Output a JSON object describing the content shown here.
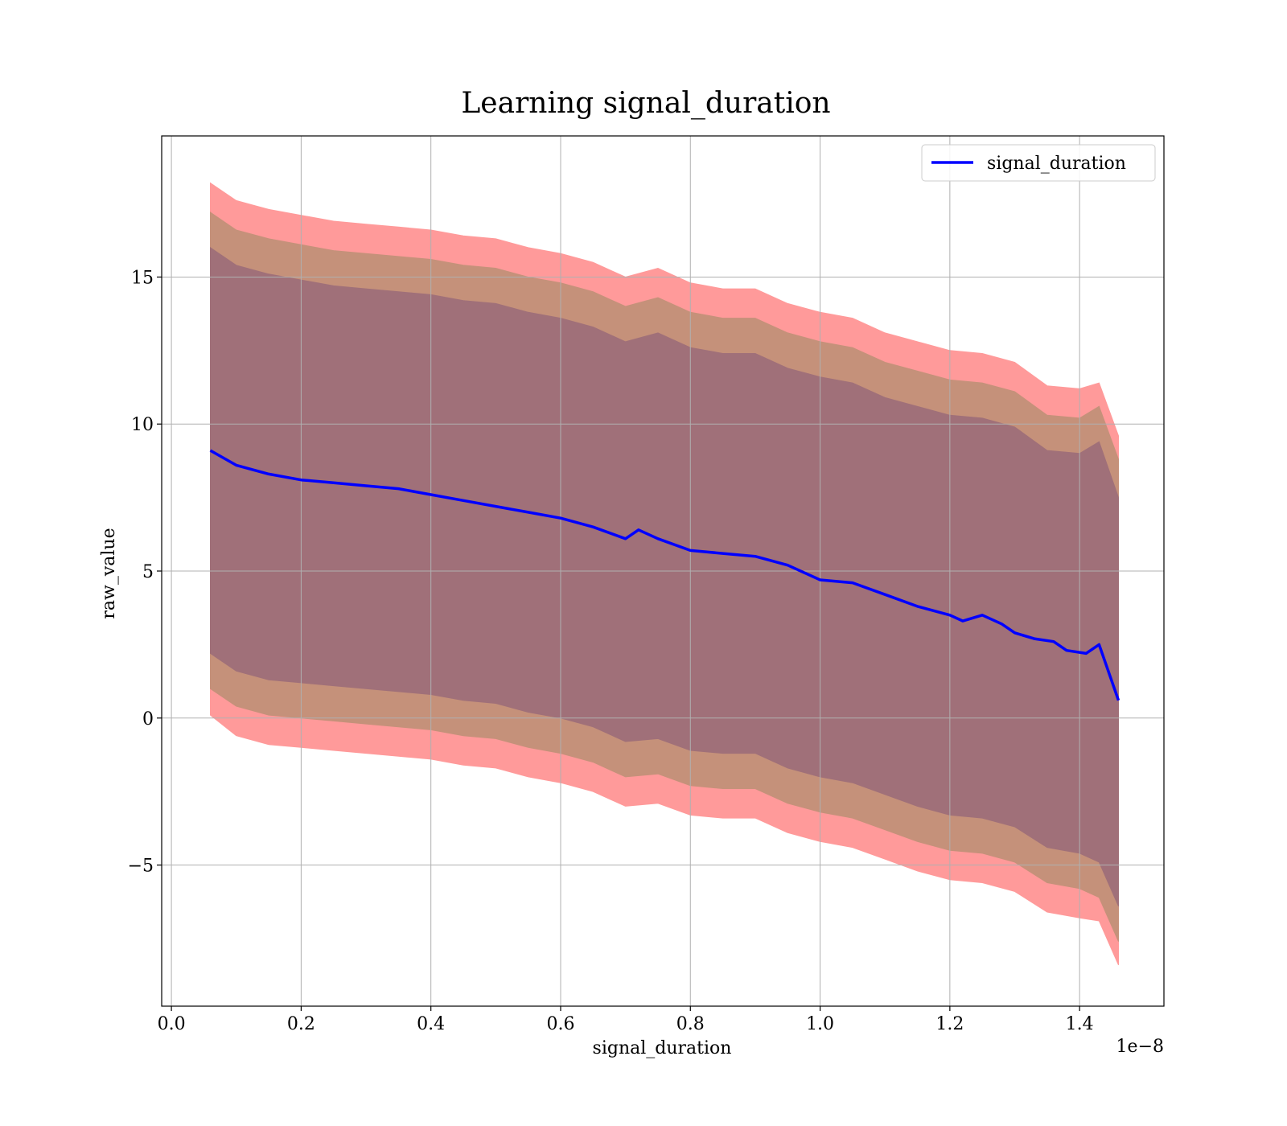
{
  "chart_data": {
    "type": "line",
    "title": "Learning signal_duration",
    "xlabel": "signal_duration",
    "ylabel": "raw_value",
    "x_offset_text": "1e−8",
    "xlim": [
      -0.015,
      1.53
    ],
    "ylim": [
      -9.8,
      19.8
    ],
    "x_ticks": [
      0.0,
      0.2,
      0.4,
      0.6,
      0.8,
      1.0,
      1.2,
      1.4
    ],
    "x_tick_labels": [
      "0.0",
      "0.2",
      "0.4",
      "0.6",
      "0.8",
      "1.0",
      "1.2",
      "1.4"
    ],
    "y_ticks": [
      -5,
      0,
      5,
      10,
      15
    ],
    "y_tick_labels": [
      "−5",
      "0",
      "5",
      "10",
      "15"
    ],
    "grid": true,
    "legend": {
      "placement": "top-right",
      "entries": [
        "signal_duration"
      ]
    },
    "colors": {
      "line": "#0000ff",
      "band_outer": "#ff9a9a",
      "band_middle": "#c5917a",
      "band_inner": "#a07079"
    },
    "series": [
      {
        "name": "signal_duration",
        "x": [
          0.06,
          0.1,
          0.15,
          0.2,
          0.25,
          0.3,
          0.35,
          0.4,
          0.45,
          0.5,
          0.55,
          0.6,
          0.65,
          0.7,
          0.72,
          0.75,
          0.8,
          0.85,
          0.9,
          0.95,
          1.0,
          1.05,
          1.1,
          1.15,
          1.2,
          1.22,
          1.25,
          1.28,
          1.3,
          1.33,
          1.36,
          1.38,
          1.41,
          1.43,
          1.46
        ],
        "y": [
          9.1,
          8.6,
          8.3,
          8.1,
          8.0,
          7.9,
          7.8,
          7.6,
          7.4,
          7.2,
          7.0,
          6.8,
          6.5,
          6.1,
          6.4,
          6.1,
          5.7,
          5.6,
          5.5,
          5.2,
          4.7,
          4.6,
          4.2,
          3.8,
          3.5,
          3.3,
          3.5,
          3.2,
          2.9,
          2.7,
          2.6,
          2.3,
          2.2,
          2.5,
          0.6
        ]
      }
    ],
    "bands": [
      {
        "level": "outer",
        "x": [
          0.06,
          0.1,
          0.15,
          0.2,
          0.25,
          0.3,
          0.35,
          0.4,
          0.45,
          0.5,
          0.55,
          0.6,
          0.65,
          0.7,
          0.75,
          0.8,
          0.85,
          0.9,
          0.95,
          1.0,
          1.05,
          1.1,
          1.15,
          1.2,
          1.25,
          1.3,
          1.35,
          1.4,
          1.43,
          1.46
        ],
        "upper": [
          18.2,
          17.6,
          17.3,
          17.1,
          16.9,
          16.8,
          16.7,
          16.6,
          16.4,
          16.3,
          16.0,
          15.8,
          15.5,
          15.0,
          15.3,
          14.8,
          14.6,
          14.6,
          14.1,
          13.8,
          13.6,
          13.1,
          12.8,
          12.5,
          12.4,
          12.1,
          11.3,
          11.2,
          11.4,
          9.6
        ],
        "lower": [
          0.1,
          -0.6,
          -0.9,
          -1.0,
          -1.1,
          -1.2,
          -1.3,
          -1.4,
          -1.6,
          -1.7,
          -2.0,
          -2.2,
          -2.5,
          -3.0,
          -2.9,
          -3.3,
          -3.4,
          -3.4,
          -3.9,
          -4.2,
          -4.4,
          -4.8,
          -5.2,
          -5.5,
          -5.6,
          -5.9,
          -6.6,
          -6.8,
          -6.9,
          -8.4
        ]
      },
      {
        "level": "middle",
        "x": [
          0.06,
          0.1,
          0.15,
          0.2,
          0.25,
          0.3,
          0.35,
          0.4,
          0.45,
          0.5,
          0.55,
          0.6,
          0.65,
          0.7,
          0.75,
          0.8,
          0.85,
          0.9,
          0.95,
          1.0,
          1.05,
          1.1,
          1.15,
          1.2,
          1.25,
          1.3,
          1.35,
          1.4,
          1.43,
          1.46
        ],
        "upper": [
          17.2,
          16.6,
          16.3,
          16.1,
          15.9,
          15.8,
          15.7,
          15.6,
          15.4,
          15.3,
          15.0,
          14.8,
          14.5,
          14.0,
          14.3,
          13.8,
          13.6,
          13.6,
          13.1,
          12.8,
          12.6,
          12.1,
          11.8,
          11.5,
          11.4,
          11.1,
          10.3,
          10.2,
          10.6,
          8.8
        ],
        "lower": [
          1.0,
          0.4,
          0.1,
          0.0,
          -0.1,
          -0.2,
          -0.3,
          -0.4,
          -0.6,
          -0.7,
          -1.0,
          -1.2,
          -1.5,
          -2.0,
          -1.9,
          -2.3,
          -2.4,
          -2.4,
          -2.9,
          -3.2,
          -3.4,
          -3.8,
          -4.2,
          -4.5,
          -4.6,
          -4.9,
          -5.6,
          -5.8,
          -6.1,
          -7.6
        ]
      },
      {
        "level": "inner",
        "x": [
          0.06,
          0.1,
          0.15,
          0.2,
          0.25,
          0.3,
          0.35,
          0.4,
          0.45,
          0.5,
          0.55,
          0.6,
          0.65,
          0.7,
          0.75,
          0.8,
          0.85,
          0.9,
          0.95,
          1.0,
          1.05,
          1.1,
          1.15,
          1.2,
          1.25,
          1.3,
          1.35,
          1.4,
          1.43,
          1.46
        ],
        "upper": [
          16.0,
          15.4,
          15.1,
          14.9,
          14.7,
          14.6,
          14.5,
          14.4,
          14.2,
          14.1,
          13.8,
          13.6,
          13.3,
          12.8,
          13.1,
          12.6,
          12.4,
          12.4,
          11.9,
          11.6,
          11.4,
          10.9,
          10.6,
          10.3,
          10.2,
          9.9,
          9.1,
          9.0,
          9.4,
          7.5
        ],
        "lower": [
          2.2,
          1.6,
          1.3,
          1.2,
          1.1,
          1.0,
          0.9,
          0.8,
          0.6,
          0.5,
          0.2,
          0.0,
          -0.3,
          -0.8,
          -0.7,
          -1.1,
          -1.2,
          -1.2,
          -1.7,
          -2.0,
          -2.2,
          -2.6,
          -3.0,
          -3.3,
          -3.4,
          -3.7,
          -4.4,
          -4.6,
          -4.9,
          -6.4
        ]
      }
    ]
  }
}
